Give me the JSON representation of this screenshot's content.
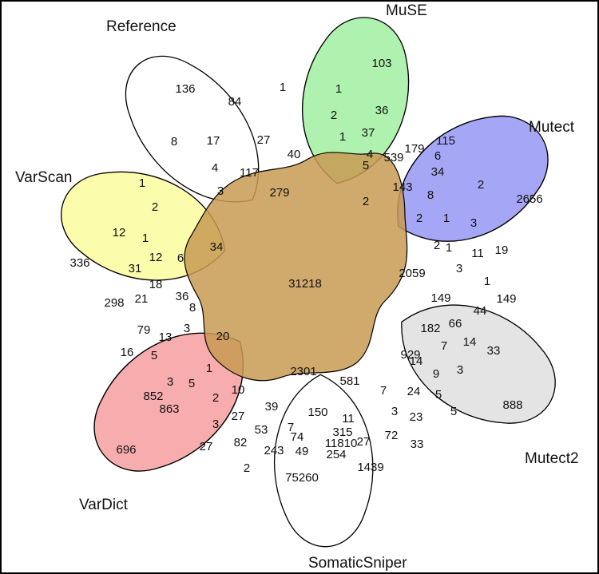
{
  "sets": [
    {
      "label": "Reference",
      "color": "#ffffff"
    },
    {
      "label": "MuSE",
      "color": "#7ee87e"
    },
    {
      "label": "Mutect",
      "color": "#6f6ff0"
    },
    {
      "label": "Mutect2",
      "color": "#d3d3d3"
    },
    {
      "label": "SomaticSniper",
      "color": "#ffffff"
    },
    {
      "label": "VarDict",
      "color": "#f27b7b"
    },
    {
      "label": "VarScan",
      "color": "#fafa7a"
    }
  ],
  "center_color": "#c89a52",
  "region_counts": [
    "136",
    "84",
    "103",
    "1",
    "1",
    "36",
    "8",
    "17",
    "27",
    "2",
    "37",
    "179",
    "115",
    "117",
    "40",
    "4",
    "539",
    "6",
    "1",
    "4",
    "34",
    "143",
    "5",
    "3",
    "279",
    "2",
    "8",
    "2",
    "2656",
    "1",
    "2",
    "12",
    "2",
    "1",
    "3",
    "1",
    "1",
    "12",
    "6",
    "34",
    "11",
    "19",
    "336",
    "31",
    "2",
    "3",
    "18",
    "31218",
    "2059",
    "1",
    "298",
    "21",
    "36",
    "149",
    "44",
    "149",
    "8",
    "182",
    "66",
    "79",
    "13",
    "3",
    "20",
    "7",
    "14",
    "33",
    "16",
    "5",
    "929",
    "14",
    "9",
    "3",
    "1",
    "2301",
    "888",
    "3",
    "5",
    "7",
    "24",
    "5",
    "852",
    "2",
    "10",
    "581",
    "863",
    "39",
    "150",
    "11",
    "3",
    "23",
    "5",
    "3",
    "27",
    "7",
    "315",
    "27",
    "72",
    "33",
    "53",
    "74",
    "11810",
    "696",
    "27",
    "82",
    "243",
    "254",
    "1439",
    "2",
    "49",
    "75260"
  ]
}
